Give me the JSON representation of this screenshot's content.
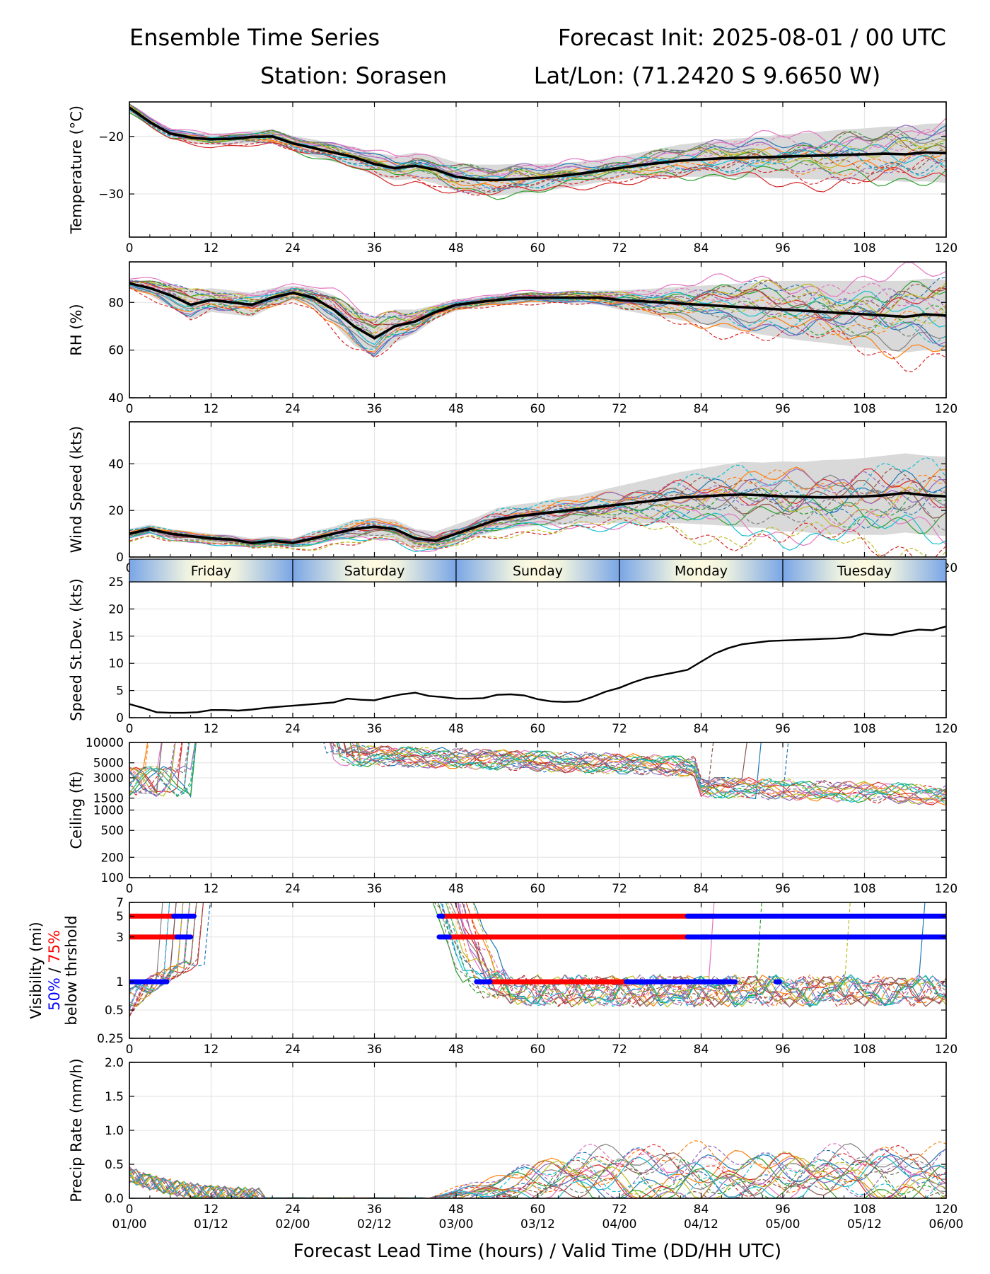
{
  "header": {
    "title_left": "Ensemble Time Series",
    "title_right": "Forecast Init: 2025-08-01 / 00 UTC",
    "station": "Station: Sorasen",
    "latlon": "Lat/Lon: (71.2420 S 9.6650 W)"
  },
  "xlabel": "Forecast Lead Time (hours) / Valid Time (DD/HH UTC)",
  "x_ticks": [
    0,
    12,
    24,
    36,
    48,
    60,
    72,
    84,
    96,
    108,
    120
  ],
  "x_ticks_valid": [
    "01/00",
    "01/12",
    "02/00",
    "02/12",
    "03/00",
    "03/12",
    "04/00",
    "04/12",
    "05/00",
    "05/12",
    "06/00"
  ],
  "days": [
    "Friday",
    "Saturday",
    "Sunday",
    "Monday",
    "Tuesday"
  ],
  "colors": {
    "members": [
      "#1f77b4",
      "#ff7f0e",
      "#2ca02c",
      "#d62728",
      "#9467bd",
      "#8c564b",
      "#e377c2",
      "#7f7f7f",
      "#bcbd22",
      "#17becf"
    ],
    "ensemble_mean": "#000000",
    "spread_fill": "#d9d9d9",
    "vis_50pct": "#0000ff",
    "vis_75pct": "#ff0000"
  },
  "chart_data": [
    {
      "id": "temp",
      "type": "line",
      "ylabel": "Temperature (°C)",
      "ylim": [
        -37.5,
        -14
      ],
      "yticks": [
        -30,
        -20
      ],
      "grid": true,
      "members": 20,
      "spread_band": true,
      "mean": {
        "x": [
          0,
          3,
          6,
          9,
          12,
          15,
          18,
          21,
          24,
          27,
          30,
          33,
          36,
          39,
          42,
          45,
          48,
          51,
          54,
          57,
          60,
          63,
          66,
          69,
          72,
          75,
          78,
          81,
          84,
          87,
          90,
          93,
          96,
          99,
          102,
          105,
          108,
          111,
          114,
          117,
          120
        ],
        "y": [
          -15,
          -17.5,
          -19.5,
          -20.2,
          -20.5,
          -20.4,
          -20.1,
          -20,
          -21.2,
          -22,
          -22.8,
          -23.6,
          -24.8,
          -25.5,
          -25.1,
          -25.8,
          -27,
          -27.5,
          -27.6,
          -27.4,
          -27.2,
          -26.9,
          -26.5,
          -26,
          -25.5,
          -25,
          -24.6,
          -24.2,
          -24,
          -23.8,
          -23.7,
          -23.6,
          -23.5,
          -23.4,
          -23.3,
          -23.2,
          -23.1,
          -23,
          -23.1,
          -22.8,
          -22.9
        ]
      },
      "spread": [
        0.8,
        0.8,
        0.9,
        1,
        1,
        1,
        1.1,
        1.2,
        1.3,
        1.5,
        1.6,
        1.8,
        2,
        2.1,
        2.3,
        2.4,
        2.5,
        2.6,
        2.7,
        2.6,
        2.4,
        2.2,
        2.1,
        2,
        2,
        2.2,
        2.5,
        2.8,
        3,
        3.2,
        3.4,
        3.6,
        3.8,
        4,
        4.2,
        4.4,
        4.5,
        4.7,
        4.8,
        5,
        5.2
      ]
    },
    {
      "id": "rh",
      "type": "line",
      "ylabel": "RH (%)",
      "ylim": [
        40,
        97
      ],
      "yticks": [
        40,
        60,
        80
      ],
      "grid": true,
      "members": 20,
      "spread_band": true,
      "mean": {
        "x": [
          0,
          3,
          6,
          9,
          12,
          15,
          18,
          21,
          24,
          27,
          30,
          33,
          36,
          39,
          42,
          45,
          48,
          51,
          54,
          57,
          60,
          63,
          66,
          69,
          72,
          75,
          78,
          81,
          84,
          87,
          90,
          93,
          96,
          99,
          102,
          105,
          108,
          111,
          114,
          117,
          120
        ],
        "y": [
          88,
          86,
          83,
          79,
          81,
          80,
          79,
          82,
          84,
          82,
          77,
          70,
          65,
          70,
          72,
          76,
          79,
          80,
          81,
          82,
          82,
          82,
          82,
          82,
          81,
          80.5,
          80,
          79.5,
          79,
          78.5,
          78,
          77.5,
          77,
          76.5,
          76,
          75.5,
          75,
          74.5,
          74,
          75,
          74.5
        ]
      },
      "spread": [
        1.5,
        3,
        5,
        6,
        5,
        5,
        5,
        4,
        3,
        4,
        6,
        8,
        8,
        7,
        5,
        3,
        2.5,
        2,
        2,
        2,
        2,
        2,
        2.5,
        3,
        4,
        5,
        6,
        7,
        8,
        9,
        10,
        11,
        12,
        12.5,
        13,
        13.5,
        14,
        14.5,
        15,
        15,
        15
      ]
    },
    {
      "id": "wspd",
      "type": "line",
      "ylabel": "Wind Speed (kts)",
      "ylim": [
        0,
        58
      ],
      "yticks": [
        0,
        20,
        40
      ],
      "grid": true,
      "members": 20,
      "spread_band": true,
      "mean": {
        "x": [
          0,
          3,
          6,
          9,
          12,
          15,
          18,
          21,
          24,
          27,
          30,
          33,
          36,
          39,
          42,
          45,
          48,
          51,
          54,
          57,
          60,
          63,
          66,
          69,
          72,
          75,
          78,
          81,
          84,
          87,
          90,
          93,
          96,
          99,
          102,
          105,
          108,
          111,
          114,
          117,
          120
        ],
        "y": [
          10,
          12,
          10,
          9,
          8,
          7.5,
          6,
          7,
          6,
          8,
          10,
          12,
          13,
          12,
          8,
          7,
          10,
          13,
          16,
          17.5,
          18.5,
          19.5,
          20.5,
          21.5,
          22.5,
          23.5,
          24.5,
          25.5,
          26,
          26.5,
          26.8,
          26.5,
          26,
          25.8,
          25.6,
          25.8,
          26,
          26.5,
          27.5,
          26.5,
          26
        ]
      },
      "spread": [
        2,
        2,
        2,
        2,
        2,
        2,
        2,
        2,
        2,
        3,
        3,
        4,
        4,
        4,
        4,
        4,
        4,
        4,
        5,
        5,
        5,
        6,
        6,
        7,
        8,
        9,
        10,
        11,
        12,
        13,
        14,
        14,
        15,
        15,
        16,
        16,
        16.5,
        17,
        17,
        17,
        17
      ]
    },
    {
      "id": "sdev",
      "type": "line",
      "ylabel": "Speed St.Dev. (kts)",
      "ylim": [
        0,
        25
      ],
      "yticks": [
        0,
        5,
        10,
        15,
        20,
        25
      ],
      "grid": true,
      "series": [
        {
          "x": [
            0,
            2,
            4,
            6,
            8,
            10,
            12,
            14,
            16,
            18,
            20,
            22,
            24,
            26,
            28,
            30,
            32,
            34,
            36,
            38,
            40,
            42,
            44,
            46,
            48,
            50,
            52,
            54,
            56,
            58,
            60,
            62,
            64,
            66,
            68,
            70,
            72,
            74,
            76,
            78,
            80,
            82,
            84,
            86,
            88,
            90,
            92,
            94,
            96,
            98,
            100,
            102,
            104,
            106,
            108,
            110,
            112,
            114,
            116,
            118,
            120
          ],
          "y": [
            2.5,
            1.8,
            1,
            0.9,
            0.9,
            1,
            1.4,
            1.4,
            1.3,
            1.5,
            1.8,
            2,
            2.2,
            2.4,
            2.6,
            2.8,
            3.5,
            3.3,
            3.2,
            3.8,
            4.3,
            4.6,
            4,
            3.8,
            3.5,
            3.5,
            3.6,
            4.2,
            4.3,
            4.1,
            3.4,
            3,
            2.9,
            3,
            3.8,
            4.8,
            5.5,
            6.5,
            7.3,
            7.8,
            8.3,
            8.8,
            10.3,
            11.8,
            12.8,
            13.5,
            13.8,
            14.1,
            14.2,
            14.3,
            14.4,
            14.5,
            14.6,
            14.8,
            15.5,
            15.3,
            15.2,
            15.8,
            16.2,
            16.1,
            16.8
          ]
        }
      ]
    },
    {
      "id": "ceil",
      "type": "line",
      "ylabel": "Ceiling (ft)",
      "yscale": "log",
      "ylim": [
        100,
        10000
      ],
      "yticks": [
        100,
        200,
        500,
        1000,
        1500,
        3000,
        5000,
        10000
      ],
      "grid": true,
      "members": 20
    },
    {
      "id": "vis",
      "type": "line",
      "ylabel_lines": [
        "Visibility (mi)",
        "50%",
        " / ",
        "75%",
        "below thrshold"
      ],
      "yscale": "log",
      "ylim": [
        0.25,
        7
      ],
      "yticks": [
        0.25,
        0.5,
        1,
        3,
        5,
        7
      ],
      "grid": true,
      "members": 20,
      "threshold_bars": [
        {
          "threshold": 5,
          "pct": 75,
          "segments": [
            [
              0,
              6.5
            ],
            [
              46,
              86
            ]
          ]
        },
        {
          "threshold": 5,
          "pct": 50,
          "segments": [
            [
              6.5,
              9.5
            ],
            [
              45.5,
              46
            ],
            [
              82,
              120
            ]
          ]
        },
        {
          "threshold": 3,
          "pct": 75,
          "segments": [
            [
              0,
              7
            ],
            [
              47,
              82
            ],
            [
              84,
              85
            ]
          ]
        },
        {
          "threshold": 3,
          "pct": 50,
          "segments": [
            [
              7,
              9
            ],
            [
              45.5,
              47
            ],
            [
              82,
              120
            ]
          ]
        },
        {
          "threshold": 1,
          "pct": 75,
          "segments": [
            [
              53,
              73
            ]
          ]
        },
        {
          "threshold": 1,
          "pct": 50,
          "segments": [
            [
              0,
              5.5
            ],
            [
              51,
              53
            ],
            [
              73,
              89
            ],
            [
              95,
              95.5
            ]
          ]
        }
      ]
    },
    {
      "id": "precip",
      "type": "line",
      "ylabel": "Precip Rate (mm/h)",
      "ylim": [
        0,
        2
      ],
      "yticks": [
        0.0,
        0.5,
        1.0,
        1.5,
        2.0
      ],
      "ytick_labels": [
        "0.0",
        "0.5",
        "1.0",
        "1.5",
        "2.0"
      ],
      "grid": true,
      "members": 20
    }
  ]
}
